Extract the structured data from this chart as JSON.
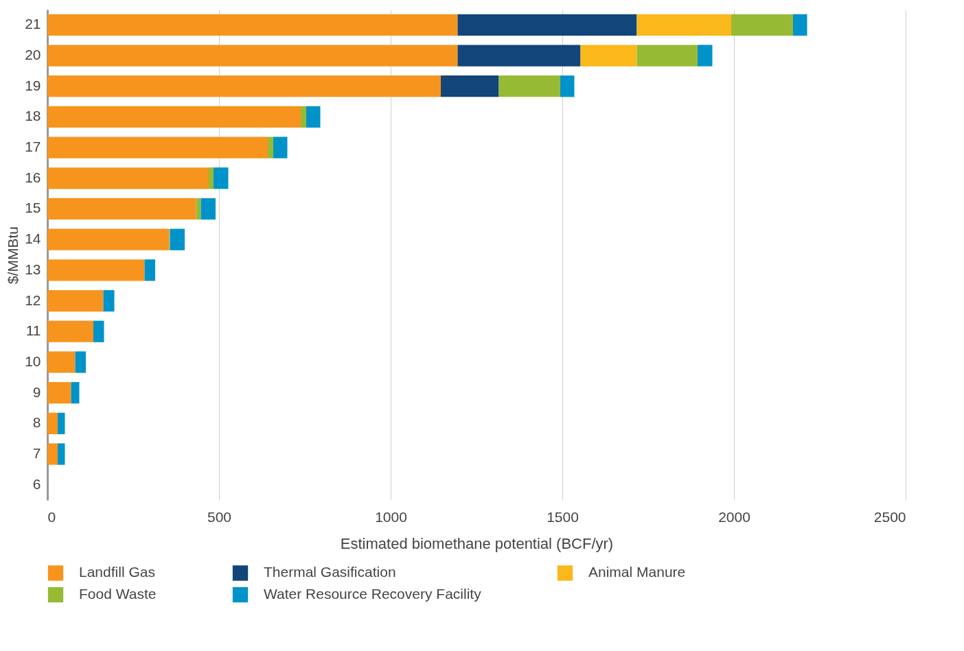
{
  "chart_data": {
    "type": "bar",
    "orientation": "horizontal",
    "stacked": true,
    "xlabel": "Estimated biomethane potential (BCF/yr)",
    "ylabel": "$/MMBtu",
    "categories": [
      "21",
      "20",
      "19",
      "18",
      "17",
      "16",
      "15",
      "14",
      "13",
      "12",
      "11",
      "10",
      "9",
      "8",
      "7",
      "6"
    ],
    "series": [
      {
        "name": "Landfill Gas",
        "color": "#f7941d",
        "values": [
          1195,
          1195,
          1146,
          738,
          642,
          470,
          433,
          355,
          283,
          163,
          134,
          81,
          69,
          30,
          30,
          0
        ]
      },
      {
        "name": "Thermal Gasification",
        "color": "#124579",
        "values": [
          522,
          358,
          169,
          0,
          0,
          0,
          0,
          0,
          0,
          0,
          0,
          0,
          0,
          0,
          0,
          0
        ]
      },
      {
        "name": "Animal Manure",
        "color": "#fbb81a",
        "values": [
          275,
          164,
          0,
          0,
          0,
          0,
          0,
          0,
          0,
          0,
          0,
          0,
          0,
          0,
          0,
          0
        ]
      },
      {
        "name": "Food Waste",
        "color": "#97ba35",
        "values": [
          180,
          177,
          179,
          16,
          16,
          14,
          14,
          2,
          null,
          0,
          0,
          0,
          0,
          0,
          0,
          0
        ]
      },
      {
        "name": "Water Resource Recovery Facility",
        "color": "#0093c9",
        "values": [
          41,
          43,
          41,
          41,
          41,
          43,
          43,
          43,
          31,
          32,
          31,
          31,
          24,
          21,
          21,
          0
        ]
      }
    ],
    "xlim": [
      0,
      2500
    ],
    "xticks": [
      0,
      500,
      1000,
      1500,
      2000,
      2500
    ],
    "grid": "x",
    "legend": "bottom"
  }
}
